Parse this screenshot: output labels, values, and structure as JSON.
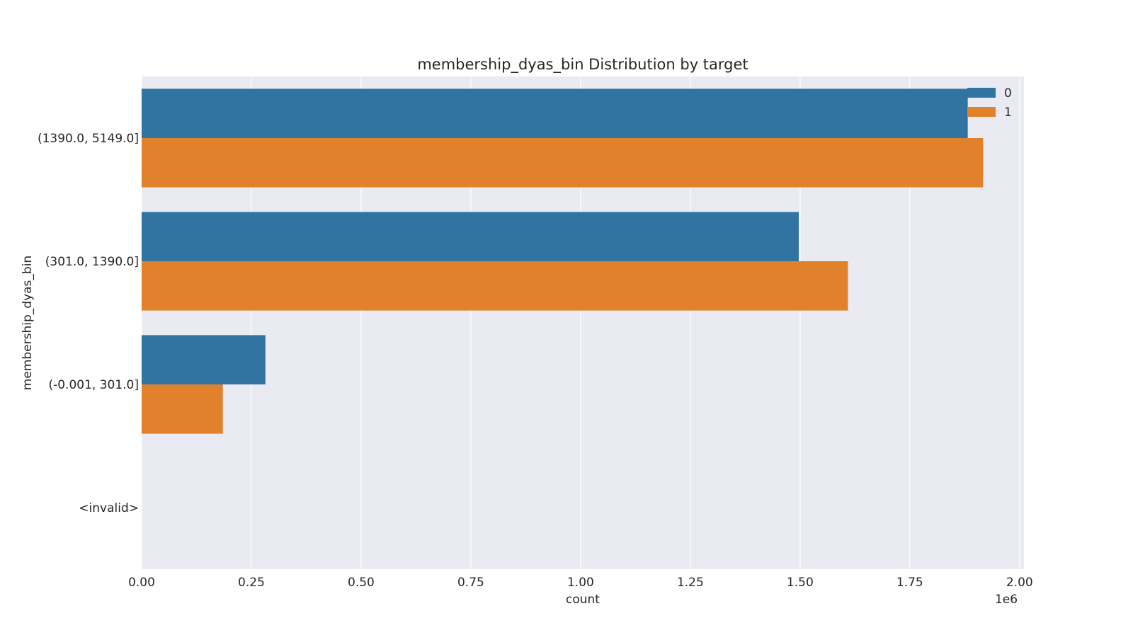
{
  "chart_data": {
    "type": "bar",
    "orientation": "horizontal",
    "title": "membership_dyas_bin Distribution by target",
    "xlabel": "count",
    "ylabel": "membership_dyas_bin",
    "x_offset_label": "1e6",
    "xlim": [
      0,
      2010000
    ],
    "x_ticks": [
      0,
      250000,
      500000,
      750000,
      1000000,
      1250000,
      1500000,
      1750000,
      2000000
    ],
    "x_tick_labels": [
      "0.00",
      "0.25",
      "0.50",
      "0.75",
      "1.00",
      "1.25",
      "1.50",
      "1.75",
      "2.00"
    ],
    "categories": [
      "(1390.0, 5149.0]",
      "(301.0, 1390.0]",
      "(-0.001, 301.0]",
      "<invalid>"
    ],
    "series": [
      {
        "name": "0",
        "color": "#3274a1",
        "values": [
          1882000,
          1497000,
          282000,
          0
        ]
      },
      {
        "name": "1",
        "color": "#e1812c",
        "values": [
          1917000,
          1609000,
          185000,
          0
        ]
      }
    ],
    "grid": true,
    "legend_position": "top-right",
    "plot_background": "#eaeaf2"
  }
}
